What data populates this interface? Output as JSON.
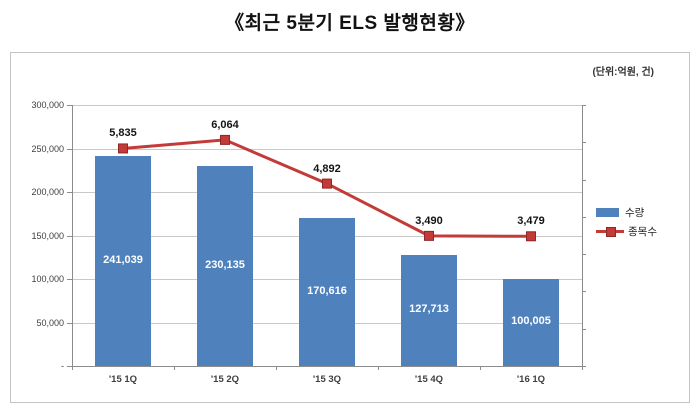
{
  "page": {
    "title": "《최근 5분기 ELS 발행현황》",
    "unit_label": "(단위:억원, 건)"
  },
  "chart_data": {
    "type": "bar+line",
    "title": "최근 5분기 ELS 발행현황",
    "unit_note": "(단위:억원, 건)",
    "categories": [
      "'15 1Q",
      "'15 2Q",
      "'15 3Q",
      "'15 4Q",
      "'16 1Q"
    ],
    "series": [
      {
        "name": "수량",
        "type": "bar",
        "axis": "primary",
        "color": "#4f81bd",
        "values": [
          241039,
          230135,
          170616,
          127713,
          100005
        ],
        "data_labels": [
          "241,039",
          "230,135",
          "170,616",
          "127,713",
          "100,005"
        ]
      },
      {
        "name": "종목수",
        "type": "line",
        "axis": "secondary",
        "color": "#c23b38",
        "marker": "square",
        "marker_border": "#8e2826",
        "values": [
          5835,
          6064,
          4892,
          3490,
          3479
        ],
        "data_labels": [
          "5,835",
          "6,064",
          "4,892",
          "3,490",
          "3,479"
        ]
      }
    ],
    "primary_axis": {
      "min": 0,
      "max": 300000,
      "major_unit": 50000,
      "tick_labels_top_to_bottom": [
        "300,000",
        "250,000",
        "200,000",
        "150,000",
        "100,000",
        "50,000",
        "-"
      ]
    },
    "secondary_axis": {
      "min": 0,
      "max": 7000,
      "major_unit": 1000,
      "labels_visible": false
    },
    "legend": {
      "position": "right",
      "entries": [
        "수량",
        "종목수"
      ]
    },
    "grid": true
  }
}
